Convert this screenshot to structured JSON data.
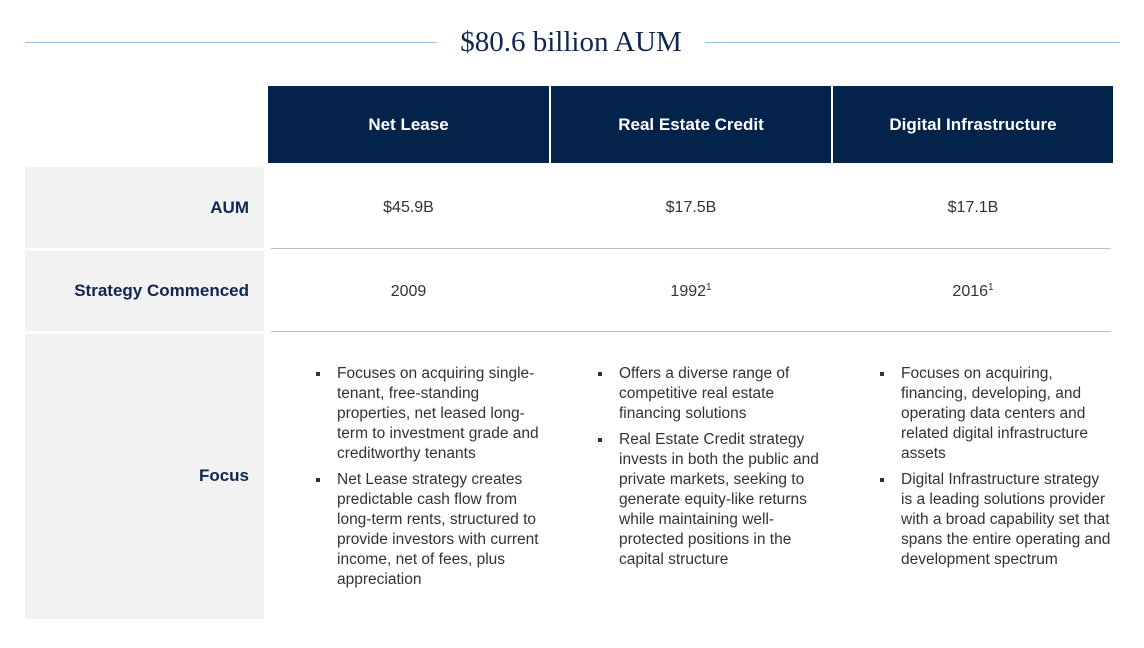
{
  "title": "$80.6 billion AUM",
  "columns": [
    "Net Lease",
    "Real Estate Credit",
    "Digital Infrastructure"
  ],
  "rows": {
    "aum": {
      "label": "AUM",
      "values": [
        "$45.9B",
        "$17.5B",
        "$17.1B"
      ]
    },
    "commenced": {
      "label": "Strategy Commenced",
      "values": [
        "2009",
        "1992",
        "2016"
      ],
      "footnotes": [
        "",
        "1",
        "1"
      ]
    },
    "focus": {
      "label": "Focus",
      "bullets": [
        [
          "Focuses on acquiring single-tenant, free-standing properties, net leased long-term to investment grade and creditworthy tenants",
          "Net Lease strategy creates predictable cash flow from long-term rents, structured to provide investors with current income, net of fees, plus appreciation"
        ],
        [
          "Offers a diverse range of competitive real estate financing solutions",
          "Real Estate Credit strategy invests in both the public and private markets, seeking to generate equity-like returns while maintaining well-protected positions in the capital structure"
        ],
        [
          "Focuses on acquiring, financing, developing, and operating data centers and related digital infrastructure assets",
          "Digital Infrastructure strategy is a leading solutions provider with a broad capability set that spans the entire operating and development spectrum"
        ]
      ]
    }
  },
  "colors": {
    "header_bg": "#03234b",
    "label_text": "#0f2650",
    "label_bg": "#f2f2f2",
    "title_rule": "#9fc3dd"
  }
}
